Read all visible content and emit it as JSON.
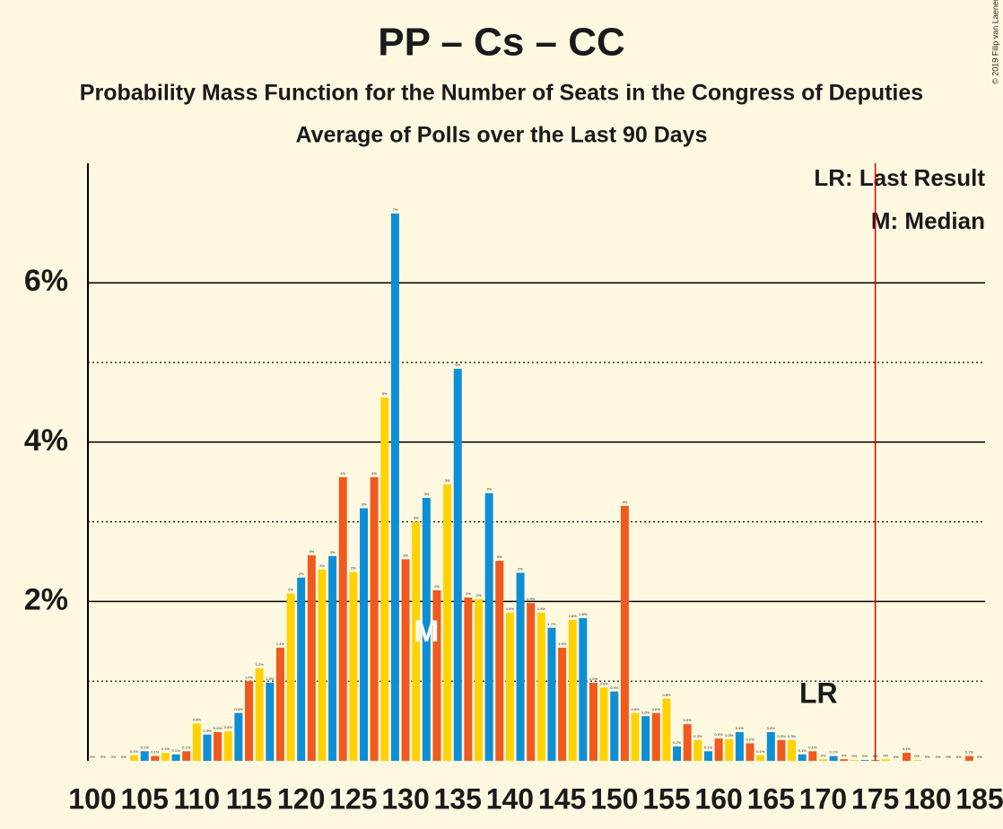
{
  "chart_data": {
    "type": "bar",
    "title": "PP – Cs – CC",
    "subtitle": "Probability Mass Function for the Number of Seats in the Congress of Deputies",
    "subtitle2": "Average of Polls over the Last 90 Days",
    "copyright": "© 2019 Filip van Laenen",
    "legend": [
      "LR: Last Result",
      "M: Median"
    ],
    "median": {
      "x": 132,
      "label": "M"
    },
    "last_result": {
      "x": 175,
      "label": "LR"
    },
    "colors": [
      "#f05a1e",
      "#ffd200",
      "#0d8fd6"
    ],
    "x": [
      100,
      101,
      102,
      103,
      104,
      105,
      106,
      107,
      108,
      109,
      110,
      111,
      112,
      113,
      114,
      115,
      116,
      117,
      118,
      119,
      120,
      121,
      122,
      123,
      124,
      125,
      126,
      127,
      128,
      129,
      130,
      131,
      132,
      133,
      134,
      135,
      136,
      137,
      138,
      139,
      140,
      141,
      142,
      143,
      144,
      145,
      146,
      147,
      148,
      149,
      150,
      151,
      152,
      153,
      154,
      155,
      156,
      157,
      158,
      159,
      160,
      161,
      162,
      163,
      164,
      165,
      166,
      167,
      168,
      169,
      170,
      171,
      172,
      173,
      174,
      175,
      176,
      177,
      178,
      179,
      180,
      181,
      182,
      183,
      184,
      185
    ],
    "values": [
      0,
      0,
      0,
      0,
      0.07,
      0.12,
      0.06,
      0.1,
      0.08,
      0.12,
      0.47,
      0.33,
      0.36,
      0.37,
      0.6,
      1.0,
      1.16,
      0.98,
      1.42,
      2.1,
      2.3,
      2.58,
      2.4,
      2.57,
      3.56,
      2.37,
      3.17,
      3.56,
      4.56,
      6.87,
      2.53,
      3.0,
      3.3,
      2.14,
      3.47,
      4.92,
      2.05,
      2.03,
      3.36,
      2.51,
      1.86,
      2.36,
      1.98,
      1.86,
      1.67,
      1.42,
      1.77,
      1.79,
      0.98,
      0.92,
      0.87,
      3.2,
      0.6,
      0.56,
      0.6,
      0.78,
      0.18,
      0.46,
      0.26,
      0.12,
      0.28,
      0.27,
      0.36,
      0.22,
      0.07,
      0.36,
      0.26,
      0.26,
      0.08,
      0.12,
      0.02,
      0.06,
      0.02,
      0.01,
      0.01,
      0.01,
      0.02,
      0,
      0.1,
      0.01,
      0,
      0,
      0,
      0,
      0.06,
      0
    ],
    "value_labels": [
      "0%",
      "0%",
      "0%",
      "0%",
      "0.1%",
      "0.1%",
      "0.1%",
      "0.1%",
      "0.1%",
      "0.1%",
      "0.5%",
      "0.3%",
      "0.4%",
      "0.4%",
      "0.6%",
      "1.0%",
      "1.2%",
      "1.0%",
      "1.4%",
      "2%",
      "2%",
      "3%",
      "2%",
      "3%",
      "4%",
      "2%",
      "3%",
      "4%",
      "5%",
      "7%",
      "3%",
      "3%",
      "3%",
      "2%",
      "3%",
      "5%",
      "2%",
      "2%",
      "3%",
      "3%",
      "1.9%",
      "2%",
      "2.0%",
      "1.9%",
      "1.7%",
      "1.4%",
      "1.8%",
      "1.8%",
      "1.0%",
      "0.9%",
      "0.9%",
      "3%",
      "0.6%",
      "0.6%",
      "0.6%",
      "0.8%",
      "0.2%",
      "0.5%",
      "0.3%",
      "0.1%",
      "0.3%",
      "0.3%",
      "0.4%",
      "0.2%",
      "0.1%",
      "0.4%",
      "0.3%",
      "0.3%",
      "0.1%",
      "0.1%",
      "0%",
      "0.1%",
      "0%",
      "0%",
      "0%",
      "0%",
      "0%",
      "0%",
      "0.1%",
      "0%",
      "0%",
      "0%",
      "0%",
      "0%",
      "0.1%",
      "0%"
    ],
    "xlim": [
      100,
      185
    ],
    "xticks": [
      100,
      105,
      110,
      115,
      120,
      125,
      130,
      135,
      140,
      145,
      150,
      155,
      160,
      165,
      170,
      175,
      180,
      185
    ],
    "ylim": [
      0,
      7.5
    ],
    "yticks": [
      {
        "value": 2,
        "label": "2%"
      },
      {
        "value": 4,
        "label": "4%"
      },
      {
        "value": 6,
        "label": "6%"
      }
    ],
    "minor_grid": [
      1,
      3,
      5
    ],
    "grid": true
  }
}
